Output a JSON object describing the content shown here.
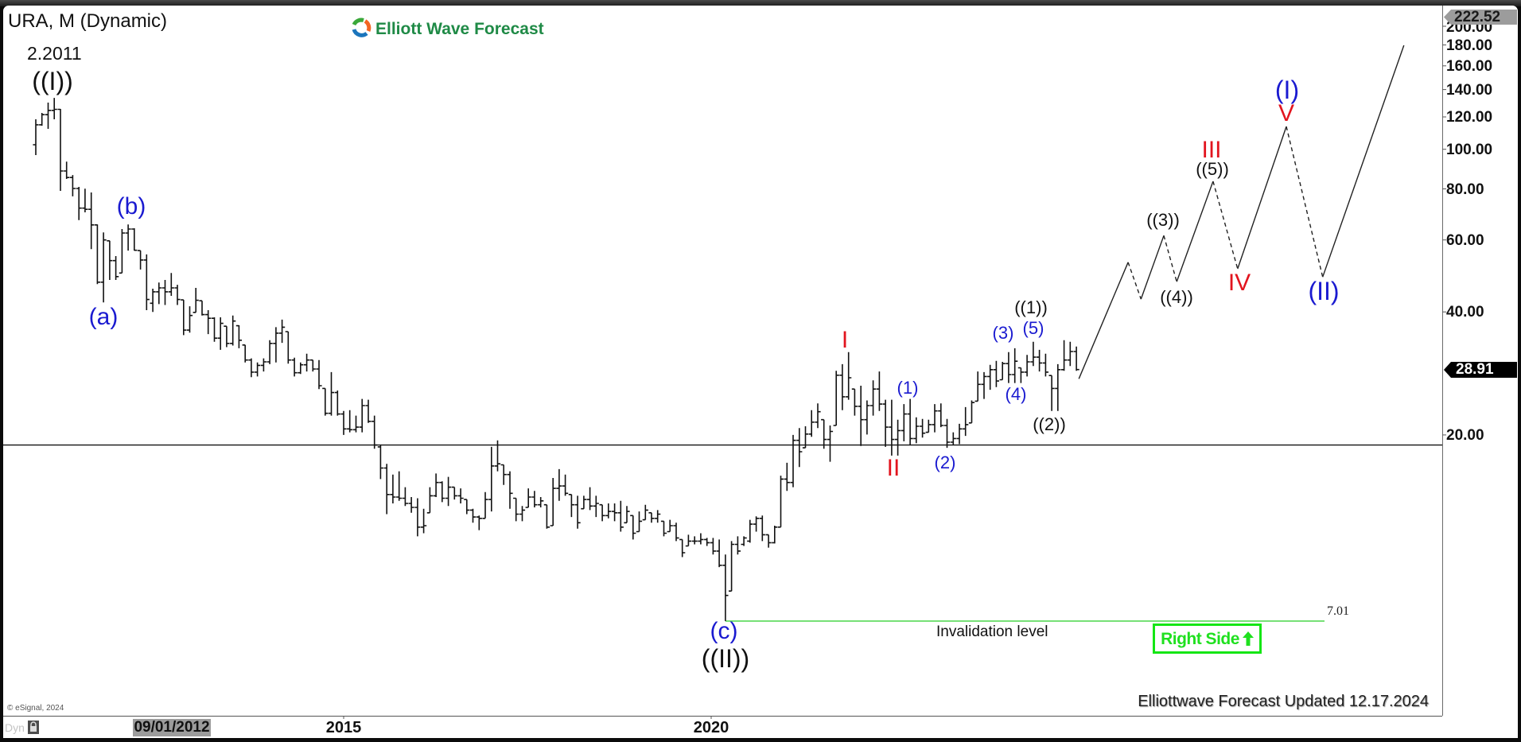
{
  "header": {
    "title": "URA, M (Dynamic)",
    "brand": "Elliott Wave Forecast",
    "brand_icon": "elliott-wave-logo-icon"
  },
  "price_axis": {
    "high_marker": "222.52",
    "last_price": "28.91",
    "ticks": [
      "200.00",
      "180.00",
      "160.00",
      "140.00",
      "120.00",
      "100.00",
      "80.00",
      "60.00",
      "40.00",
      "20.00"
    ]
  },
  "x_axis": {
    "cursor_date": "09/01/2012",
    "labels": [
      "2015",
      "2020"
    ]
  },
  "annotations": {
    "start_date": "2.2011",
    "invalidation_label": "Invalidation level",
    "invalidation_value": "7.01",
    "right_side": "Right Side",
    "right_side_icon": "up-arrow-icon",
    "updated": "Elliottwave Forecast Updated 12.17.2024"
  },
  "footer": {
    "copyright": "© eSignal, 2024",
    "mode": "Dyn",
    "mode_icon": "lock-icon"
  },
  "colors": {
    "wave_blue": "#1a1ad0",
    "wave_red": "#e2141e",
    "wave_black": "#111111",
    "invalidation_line": "#57d957",
    "right_side": "#14e614",
    "brand": "#1f8a46",
    "last_price_bg": "#000000",
    "high_marker_bg": "#9c9c9c"
  },
  "chart_data": {
    "type": "ohlc",
    "title": "URA, M (Dynamic)",
    "symbol": "URA",
    "interval": "Monthly",
    "first_bar": "2010-11",
    "last_bar": "2024-12",
    "last_price": 28.91,
    "high_marker": 222.52,
    "y_axis": {
      "scale": "log",
      "ticks": [
        200,
        180,
        160,
        140,
        120,
        100,
        80,
        60,
        40,
        20
      ],
      "range": [
        6.5,
        222.52
      ]
    },
    "x_axis": {
      "labels": [
        "09/01/2012",
        "2015",
        "2020"
      ]
    },
    "reference_line": {
      "price": 18.9
    },
    "invalidation": {
      "price": 7.01,
      "label": "Invalidation level",
      "from_index": 112,
      "to_index": 209.3
    },
    "wave_labels": [
      {
        "text": "((I))",
        "color": "black",
        "date": "2.2011"
      },
      {
        "text": "(a)",
        "color": "blue"
      },
      {
        "text": "(b)",
        "color": "blue"
      },
      {
        "text": "(c)",
        "color": "blue"
      },
      {
        "text": "((II))",
        "color": "black"
      },
      {
        "text": "I",
        "color": "red"
      },
      {
        "text": "II",
        "color": "red"
      },
      {
        "text": "(1)",
        "color": "blue"
      },
      {
        "text": "(2)",
        "color": "blue"
      },
      {
        "text": "(3)",
        "color": "blue"
      },
      {
        "text": "(4)",
        "color": "blue"
      },
      {
        "text": "(5)",
        "color": "blue"
      },
      {
        "text": "((1))",
        "color": "black"
      },
      {
        "text": "((2))",
        "color": "black"
      },
      {
        "text": "((3))",
        "color": "black"
      },
      {
        "text": "((4))",
        "color": "black"
      },
      {
        "text": "((5))",
        "color": "black"
      },
      {
        "text": "III",
        "color": "red"
      },
      {
        "text": "IV",
        "color": "red"
      },
      {
        "text": "V",
        "color": "red"
      },
      {
        "text": "(I)",
        "color": "blue"
      },
      {
        "text": "(II)",
        "color": "blue"
      }
    ],
    "projection": {
      "points": [
        [
          169.4,
          27.45
        ],
        [
          177.4,
          52.9
        ],
        [
          179.5,
          43.0
        ],
        [
          183.2,
          61.5
        ],
        [
          185.3,
          47.4
        ],
        [
          191.2,
          83.5
        ],
        [
          195.2,
          51.0
        ],
        [
          203.1,
          113.7
        ],
        [
          209.0,
          48.7
        ],
        [
          222.2,
          179.6
        ]
      ],
      "dashed_segments": [
        1,
        3,
        5,
        7
      ]
    },
    "bars_format": [
      "open",
      "high",
      "low",
      "close"
    ],
    "bars": [
      [
        102.6,
        118.4,
        96.8,
        114.8
      ],
      [
        114.8,
        122.7,
        114.2,
        121.5
      ],
      [
        121.5,
        130.1,
        112.2,
        124.5
      ],
      [
        124.5,
        133.6,
        118.4,
        125.2
      ],
      [
        125.2,
        125.5,
        79.1,
        88.5
      ],
      [
        88.5,
        93.3,
        84.6,
        85.3
      ],
      [
        85.3,
        86.5,
        76.7,
        80.2
      ],
      [
        80.2,
        80.9,
        67.1,
        71.8
      ],
      [
        71.8,
        80.1,
        70.1,
        71.3
      ],
      [
        71.3,
        78.4,
        57.0,
        65.3
      ],
      [
        65.3,
        65.5,
        46.8,
        47.3
      ],
      [
        47.3,
        62.6,
        42.2,
        60.0
      ],
      [
        59.7,
        59.7,
        47.9,
        53.4
      ],
      [
        53.4,
        54.8,
        47.9,
        48.8
      ],
      [
        49.8,
        63.8,
        49.8,
        62.4
      ],
      [
        62.4,
        65.5,
        56.5,
        63.8
      ],
      [
        63.8,
        64.1,
        56.5,
        56.6
      ],
      [
        56.5,
        56.5,
        50.8,
        53.6
      ],
      [
        53.6,
        55.3,
        40.4,
        42.9
      ],
      [
        42.0,
        45.6,
        40.0,
        44.8
      ],
      [
        44.8,
        47.2,
        41.8,
        45.8
      ],
      [
        45.8,
        47.9,
        41.6,
        44.8
      ],
      [
        44.8,
        49.8,
        43.8,
        45.8
      ],
      [
        45.8,
        46.6,
        41.6,
        42.9
      ],
      [
        42.8,
        42.8,
        35.1,
        36.1
      ],
      [
        36.1,
        41.3,
        35.6,
        39.2
      ],
      [
        39.9,
        45.8,
        39.9,
        42.7
      ],
      [
        42.6,
        42.6,
        39.2,
        39.4
      ],
      [
        39.4,
        40.4,
        35.3,
        38.6
      ],
      [
        38.6,
        38.8,
        33.8,
        34.5
      ],
      [
        34.5,
        38.8,
        32.3,
        37.5
      ],
      [
        36.9,
        36.9,
        32.8,
        33.5
      ],
      [
        33.5,
        39.2,
        33.1,
        38.0
      ],
      [
        37.0,
        37.1,
        32.6,
        34.1
      ],
      [
        33.2,
        33.2,
        30.1,
        30.5
      ],
      [
        30.5,
        30.8,
        27.7,
        28.5
      ],
      [
        28.5,
        30.1,
        27.8,
        29.6
      ],
      [
        29.6,
        30.8,
        28.6,
        30.2
      ],
      [
        30.2,
        34.1,
        29.8,
        33.5
      ],
      [
        33.5,
        36.7,
        30.1,
        35.5
      ],
      [
        35.5,
        38.3,
        33.6,
        36.7
      ],
      [
        35.8,
        35.8,
        29.9,
        30.5
      ],
      [
        30.5,
        30.9,
        27.8,
        28.4
      ],
      [
        28.4,
        30.1,
        28.2,
        29.7
      ],
      [
        29.7,
        31.6,
        28.6,
        30.5
      ],
      [
        30.5,
        30.5,
        28.6,
        29.0
      ],
      [
        29.0,
        30.5,
        25.9,
        26.4
      ],
      [
        26.0,
        26.0,
        22.3,
        22.6
      ],
      [
        22.6,
        28.5,
        22.3,
        25.4
      ],
      [
        25.4,
        25.7,
        22.3,
        22.5
      ],
      [
        22.5,
        22.9,
        20.0,
        20.7
      ],
      [
        20.7,
        23.0,
        20.3,
        20.6
      ],
      [
        20.6,
        22.3,
        20.3,
        20.9
      ],
      [
        20.9,
        24.5,
        20.3,
        23.6
      ],
      [
        23.6,
        24.4,
        21.4,
        21.6
      ],
      [
        21.6,
        22.3,
        18.5,
        18.9
      ],
      [
        18.7,
        18.9,
        15.6,
        16.6
      ],
      [
        16.6,
        17.0,
        12.8,
        14.3
      ],
      [
        14.3,
        16.0,
        13.6,
        14.1
      ],
      [
        14.1,
        16.3,
        13.8,
        14.0
      ],
      [
        14.0,
        14.9,
        13.4,
        13.6
      ],
      [
        13.6,
        14.1,
        12.9,
        13.3
      ],
      [
        13.3,
        14.0,
        11.3,
        11.9
      ],
      [
        11.9,
        13.2,
        11.5,
        12.0
      ],
      [
        12.9,
        14.9,
        12.9,
        14.2
      ],
      [
        14.2,
        16.1,
        14.1,
        15.3
      ],
      [
        15.3,
        15.4,
        13.7,
        14.0
      ],
      [
        14.0,
        15.8,
        13.4,
        14.9
      ],
      [
        14.9,
        14.9,
        13.9,
        14.2
      ],
      [
        14.2,
        14.8,
        13.6,
        14.0
      ],
      [
        13.9,
        13.9,
        12.8,
        13.1
      ],
      [
        13.1,
        13.2,
        12.2,
        12.6
      ],
      [
        12.6,
        12.7,
        11.7,
        12.5
      ],
      [
        12.5,
        14.5,
        12.5,
        13.9
      ],
      [
        13.9,
        18.7,
        13.0,
        16.8
      ],
      [
        16.8,
        19.4,
        16.3,
        17.0
      ],
      [
        16.9,
        16.9,
        15.1,
        16.0
      ],
      [
        16.0,
        16.3,
        13.2,
        14.4
      ],
      [
        14.0,
        14.0,
        12.3,
        12.8
      ],
      [
        12.8,
        13.4,
        12.3,
        13.1
      ],
      [
        13.3,
        14.8,
        13.3,
        14.1
      ],
      [
        14.1,
        14.6,
        13.3,
        13.5
      ],
      [
        13.5,
        14.1,
        13.3,
        13.8
      ],
      [
        13.5,
        13.5,
        11.8,
        11.9
      ],
      [
        12.0,
        15.7,
        12.0,
        14.8
      ],
      [
        14.8,
        16.5,
        13.8,
        15.0
      ],
      [
        15.0,
        16.0,
        14.2,
        14.4
      ],
      [
        14.3,
        14.3,
        12.6,
        13.5
      ],
      [
        13.5,
        14.2,
        11.8,
        12.2
      ],
      [
        13.2,
        14.2,
        13.2,
        13.9
      ],
      [
        13.9,
        14.9,
        13.1,
        13.4
      ],
      [
        13.4,
        14.2,
        12.6,
        13.6
      ],
      [
        13.5,
        13.5,
        12.3,
        12.7
      ],
      [
        12.7,
        13.6,
        12.5,
        13.0
      ],
      [
        13.0,
        13.6,
        12.3,
        12.9
      ],
      [
        12.9,
        13.8,
        11.6,
        11.9
      ],
      [
        12.2,
        13.4,
        12.2,
        13.0
      ],
      [
        12.7,
        12.7,
        11.1,
        11.5
      ],
      [
        11.6,
        13.0,
        11.6,
        12.3
      ],
      [
        12.4,
        13.5,
        12.4,
        13.1
      ],
      [
        12.9,
        12.9,
        12.2,
        12.5
      ],
      [
        12.5,
        13.1,
        12.2,
        12.8
      ],
      [
        12.3,
        12.3,
        11.3,
        11.5
      ],
      [
        11.6,
        12.4,
        11.6,
        12.0
      ],
      [
        12.0,
        12.2,
        11.0,
        11.2
      ],
      [
        11.1,
        11.1,
        10.05,
        10.3
      ],
      [
        10.7,
        11.4,
        10.7,
        11.0
      ],
      [
        11.0,
        11.3,
        10.8,
        11.0
      ],
      [
        11.0,
        11.5,
        10.8,
        11.1
      ],
      [
        11.1,
        11.2,
        10.7,
        10.9
      ],
      [
        10.9,
        11.2,
        10.2,
        10.4
      ],
      [
        10.4,
        11.1,
        9.5,
        9.6
      ],
      [
        9.6,
        10.2,
        7.01,
        8.1
      ],
      [
        8.3,
        11.0,
        8.3,
        10.8
      ],
      [
        10.8,
        11.3,
        10.2,
        10.4
      ],
      [
        10.8,
        11.3,
        10.7,
        11.2
      ],
      [
        11.0,
        12.4,
        10.9,
        12.1
      ],
      [
        12.1,
        12.65,
        11.6,
        12.5
      ],
      [
        12.5,
        12.7,
        11.0,
        11.4
      ],
      [
        11.4,
        11.4,
        10.6,
        10.9
      ],
      [
        10.9,
        12.0,
        10.85,
        11.9
      ],
      [
        11.9,
        15.9,
        11.9,
        15.6
      ],
      [
        15.6,
        17.1,
        14.6,
        15.3
      ],
      [
        15.3,
        20.0,
        14.9,
        19.4
      ],
      [
        19.4,
        20.8,
        16.7,
        18.2
      ],
      [
        18.6,
        21.0,
        18.6,
        20.1
      ],
      [
        20.1,
        23.0,
        19.8,
        21.5
      ],
      [
        21.5,
        23.9,
        20.8,
        22.8
      ],
      [
        21.8,
        21.8,
        18.5,
        19.5
      ],
      [
        19.5,
        21.1,
        17.2,
        20.4
      ],
      [
        21.1,
        28.7,
        21.1,
        28.0
      ],
      [
        28.0,
        29.8,
        23.0,
        24.8
      ],
      [
        24.8,
        31.9,
        24.4,
        27.6
      ],
      [
        25.9,
        25.9,
        22.3,
        23.5
      ],
      [
        23.5,
        26.4,
        18.8,
        21.8
      ],
      [
        21.8,
        24.3,
        20.05,
        23.6
      ],
      [
        23.6,
        27.2,
        22.3,
        25.9
      ],
      [
        25.9,
        28.6,
        22.9,
        23.8
      ],
      [
        23.8,
        24.4,
        18.7,
        20.9
      ],
      [
        20.9,
        24.4,
        17.8,
        19.5
      ],
      [
        19.5,
        21.8,
        17.8,
        20.5
      ],
      [
        20.5,
        23.8,
        19.3,
        22.5
      ],
      [
        22.5,
        24.5,
        18.9,
        19.6
      ],
      [
        19.6,
        22.1,
        19.1,
        21.0
      ],
      [
        21.0,
        21.9,
        19.7,
        20.2
      ],
      [
        20.3,
        21.8,
        20.3,
        21.2
      ],
      [
        21.2,
        23.8,
        20.3,
        22.9
      ],
      [
        22.9,
        23.9,
        20.9,
        21.1
      ],
      [
        21.1,
        21.9,
        18.6,
        19.2
      ],
      [
        19.2,
        20.3,
        18.9,
        19.6
      ],
      [
        19.6,
        21.3,
        19.0,
        20.7
      ],
      [
        20.7,
        23.4,
        19.9,
        21.2
      ],
      [
        21.4,
        24.3,
        21.4,
        24.0
      ],
      [
        24.2,
        28.6,
        24.2,
        26.6
      ],
      [
        26.6,
        28.5,
        24.5,
        27.8
      ],
      [
        27.8,
        29.7,
        25.8,
        28.9
      ],
      [
        28.9,
        30.35,
        26.2,
        27.1
      ],
      [
        27.3,
        30.2,
        27.3,
        29.9
      ],
      [
        29.9,
        31.9,
        26.8,
        28.1
      ],
      [
        28.1,
        32.6,
        26.8,
        30.3
      ],
      [
        29.2,
        29.2,
        26.8,
        28.5
      ],
      [
        28.5,
        31.4,
        27.8,
        30.2
      ],
      [
        30.2,
        33.8,
        29.5,
        31.0
      ],
      [
        31.0,
        32.3,
        28.6,
        30.0
      ],
      [
        30.0,
        31.6,
        27.8,
        28.5
      ],
      [
        27.95,
        27.95,
        22.9,
        26.0
      ],
      [
        26.0,
        29.8,
        22.9,
        28.9
      ],
      [
        28.9,
        34.1,
        28.7,
        30.5
      ],
      [
        30.5,
        33.8,
        29.5,
        32.0
      ],
      [
        32.0,
        32.9,
        28.7,
        28.91
      ]
    ]
  }
}
